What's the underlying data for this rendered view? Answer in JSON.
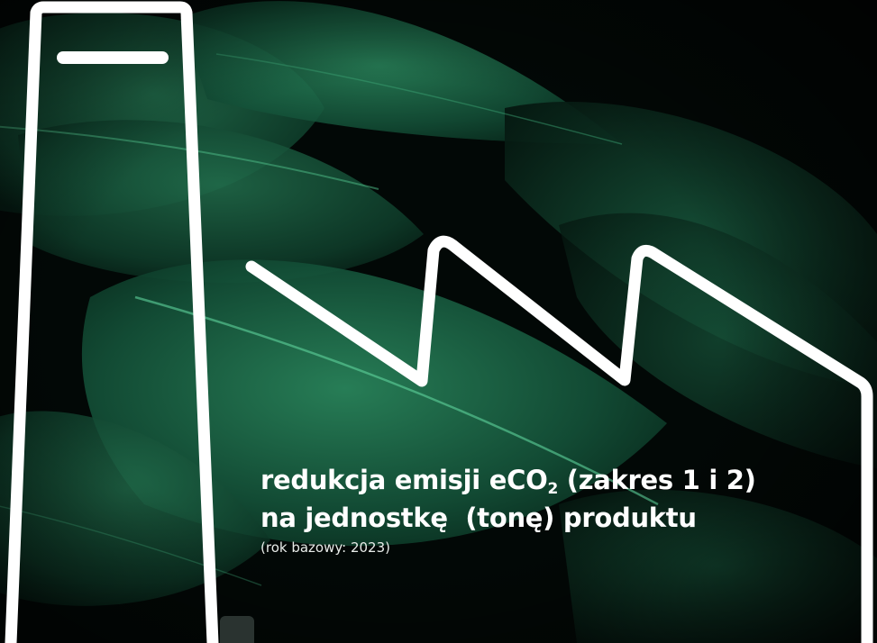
{
  "caption": {
    "line1_prefix": "redukcja emisji eCO",
    "line1_subscript": "2",
    "line1_suffix": " (zakres 1 i 2)",
    "line2": "na jednostkę  (tonę) produktu",
    "note": "(rok bazowy: 2023)"
  },
  "style": {
    "background": "#020806",
    "leaf_green": "#1f6e4c",
    "outline": "#ffffff"
  },
  "decor": {
    "background_image": "dark-green-leaves",
    "outline_shape": "factory-silhouette-icon"
  }
}
